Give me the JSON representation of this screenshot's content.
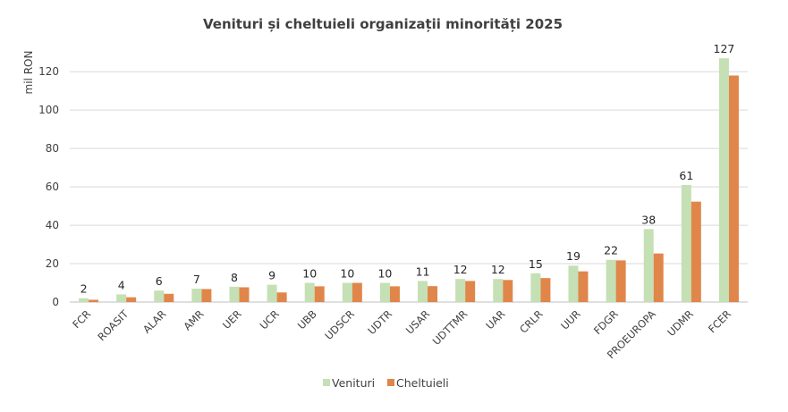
{
  "chart_data": {
    "type": "bar",
    "title": "Venituri și cheltuieli organizații minorități 2025",
    "ylabel": "mil RON",
    "xlabel": "",
    "ylim": [
      0,
      135
    ],
    "yticks": [
      0,
      20,
      40,
      60,
      80,
      100,
      120
    ],
    "grid": true,
    "legend_position": "bottom",
    "categories": [
      "FCR",
      "ROASIT",
      "ALAR",
      "AMR",
      "UER",
      "UCR",
      "UBB",
      "UDSCR",
      "UDTR",
      "USAR",
      "UDTTMR",
      "UAR",
      "CRLR",
      "UUR",
      "FDGR",
      "PROEUROPA",
      "UDMR",
      "FCER"
    ],
    "series": [
      {
        "name": "Venituri",
        "color": "#c5e0b4",
        "values": [
          2,
          4,
          6,
          7,
          8,
          9,
          10,
          10,
          10,
          11,
          12,
          12,
          15,
          19,
          22,
          38,
          61,
          127
        ],
        "data_labels": [
          "2",
          "4",
          "6",
          "7",
          "8",
          "9",
          "10",
          "10",
          "10",
          "11",
          "12",
          "12",
          "15",
          "19",
          "22",
          "38",
          "61",
          "127"
        ]
      },
      {
        "name": "Cheltuieli",
        "color": "#e0864a",
        "values": [
          1.2,
          2.5,
          4.3,
          6.8,
          7.7,
          5.0,
          8.2,
          10.0,
          8.2,
          8.3,
          11.0,
          11.5,
          12.5,
          16.0,
          21.7,
          25.3,
          52.3,
          118.0
        ]
      }
    ]
  }
}
